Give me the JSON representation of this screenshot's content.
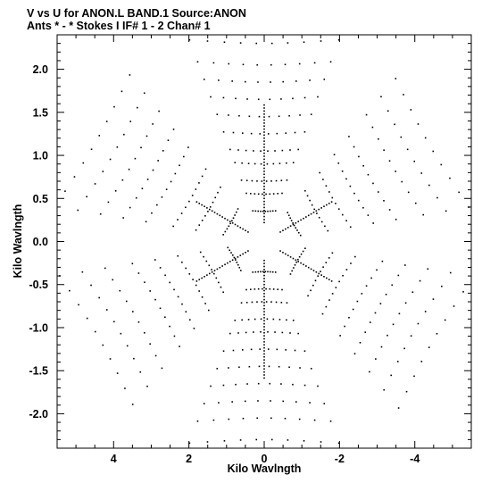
{
  "chart_data": {
    "type": "scatter",
    "title": "V vs U for ANON.L BAND.1   Source:ANON",
    "subtitle": "Ants * - *     Stokes I   IF# 1 - 2   Chan# 1",
    "xlabel": "Kilo Wavlngth",
    "ylabel": "Kilo Wavlngth",
    "x_reversed": true,
    "xlim": [
      5.5,
      -5.5
    ],
    "ylim": [
      -2.4,
      2.4
    ],
    "xticks": [
      4,
      2,
      0,
      -2,
      -4
    ],
    "xtick_labels": [
      "4",
      "2",
      "0",
      "-2",
      "-4"
    ],
    "yticks": [
      2.0,
      1.5,
      1.0,
      0.5,
      0.0,
      -0.5,
      -1.0,
      -1.5,
      -2.0
    ],
    "ytick_labels": [
      "2.0",
      "1.5",
      "1.0",
      "0.5",
      "0.0",
      "-0.5",
      "-1.0",
      "-1.5",
      "-2.0"
    ],
    "grid": false,
    "marker_color": "#000000",
    "arm_directions_deg": [
      90,
      30,
      -30,
      -90,
      -150,
      150
    ],
    "inner_radius": 0.22,
    "track_length": 0.72,
    "track_bend": 0.35,
    "baselines": [
      {
        "radius": 0.35,
        "angle_deg": 90
      },
      {
        "radius": 0.55,
        "angle_deg": 90
      },
      {
        "radius": 0.7,
        "angle_deg": 90
      },
      {
        "radius": 0.9,
        "angle_deg": 90
      },
      {
        "radius": 1.05,
        "angle_deg": 90
      },
      {
        "radius": 1.25,
        "angle_deg": 90
      },
      {
        "radius": 1.45,
        "angle_deg": 90
      },
      {
        "radius": 1.65,
        "angle_deg": 90
      },
      {
        "radius": 1.85,
        "angle_deg": 90
      },
      {
        "radius": 2.05,
        "angle_deg": 90
      },
      {
        "radius": 2.3,
        "angle_deg": 90
      },
      {
        "radius": 0.45,
        "angle_deg": 30
      },
      {
        "radius": 0.75,
        "angle_deg": 30
      },
      {
        "radius": 1.0,
        "angle_deg": 30
      },
      {
        "radius": 1.3,
        "angle_deg": 30
      },
      {
        "radius": 1.55,
        "angle_deg": 30
      },
      {
        "radius": 1.8,
        "angle_deg": 30
      },
      {
        "radius": 2.05,
        "angle_deg": 30
      },
      {
        "radius": 2.3,
        "angle_deg": 30
      },
      {
        "radius": 0.4,
        "angle_deg": -30
      },
      {
        "radius": 0.7,
        "angle_deg": -30
      },
      {
        "radius": 0.95,
        "angle_deg": -30
      },
      {
        "radius": 1.2,
        "angle_deg": -30
      },
      {
        "radius": 1.45,
        "angle_deg": -30
      },
      {
        "radius": 1.75,
        "angle_deg": -30
      },
      {
        "radius": 2.0,
        "angle_deg": -30
      },
      {
        "radius": 2.25,
        "angle_deg": -30
      }
    ]
  }
}
